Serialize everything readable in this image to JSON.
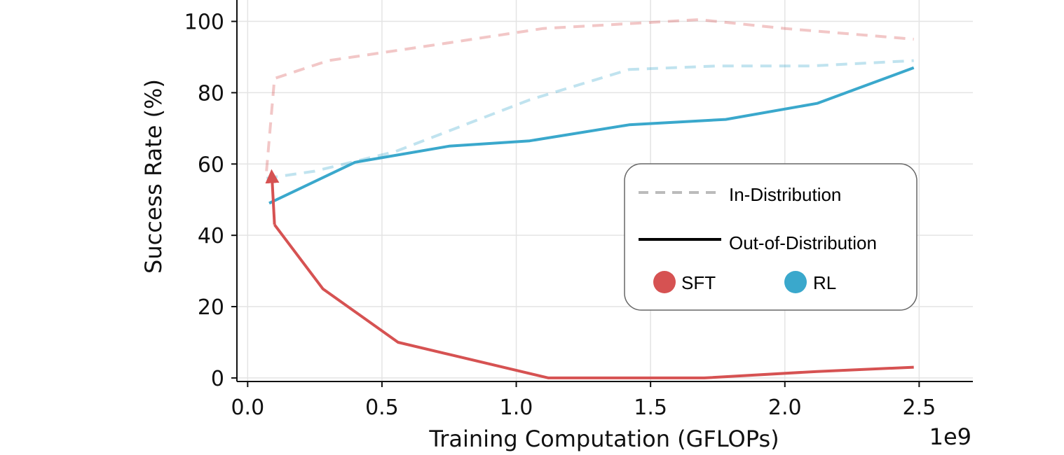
{
  "chart_data": {
    "type": "line",
    "xlabel": "Training Computation (GFLOPs)",
    "ylabel": "Success Rate (%)",
    "x_offset_label": "1e9",
    "xlim": [
      -0.04,
      2.7
    ],
    "ylim": [
      -1,
      106
    ],
    "x_ticks": [
      0.0,
      0.5,
      1.0,
      1.5,
      2.0,
      2.5
    ],
    "x_tick_labels": [
      "0.0",
      "0.5",
      "1.0",
      "1.5",
      "2.0",
      "2.5"
    ],
    "y_ticks": [
      0,
      20,
      40,
      60,
      80,
      100
    ],
    "y_tick_labels": [
      "0",
      "20",
      "40",
      "60",
      "80",
      "100"
    ],
    "grid": true,
    "legend_position": "center-right",
    "legend": {
      "in_distribution": "In-Distribution",
      "out_of_distribution": "Out-of-Distribution",
      "sft": "SFT",
      "rl": "RL"
    },
    "colors": {
      "sft": "#d65252",
      "rl": "#3aa8cc",
      "legend_dashed": "#bbbbbb"
    },
    "series": [
      {
        "method": "SFT",
        "distribution": "In-Distribution",
        "style": "dashed",
        "x": [
          0.07,
          0.1,
          0.3,
          0.75,
          1.1,
          1.45,
          1.68,
          2.0,
          2.48
        ],
        "y": [
          58,
          84,
          89,
          94,
          98,
          99.5,
          100.5,
          98,
          95
        ]
      },
      {
        "method": "SFT",
        "distribution": "Out-of-Distribution",
        "style": "solid",
        "x": [
          0.1,
          0.28,
          0.56,
          1.12,
          1.7,
          2.12,
          2.48
        ],
        "y": [
          43,
          25,
          10,
          0,
          0,
          1.8,
          3
        ]
      },
      {
        "method": "RL",
        "distribution": "In-Distribution",
        "style": "dashed",
        "x": [
          0.07,
          0.25,
          0.55,
          1.05,
          1.42,
          1.75,
          2.1,
          2.48
        ],
        "y": [
          56,
          58,
          63.5,
          78,
          86.5,
          87.5,
          87.5,
          89
        ]
      },
      {
        "method": "RL",
        "distribution": "Out-of-Distribution",
        "style": "solid",
        "x": [
          0.08,
          0.4,
          0.75,
          1.05,
          1.42,
          1.78,
          2.12,
          2.48
        ],
        "y": [
          49,
          60.5,
          65,
          66.5,
          71,
          72.5,
          77,
          87
        ]
      }
    ],
    "arrow": {
      "x": [
        0.1,
        0.09
      ],
      "y": [
        43,
        57
      ],
      "color": "#d65252"
    }
  }
}
